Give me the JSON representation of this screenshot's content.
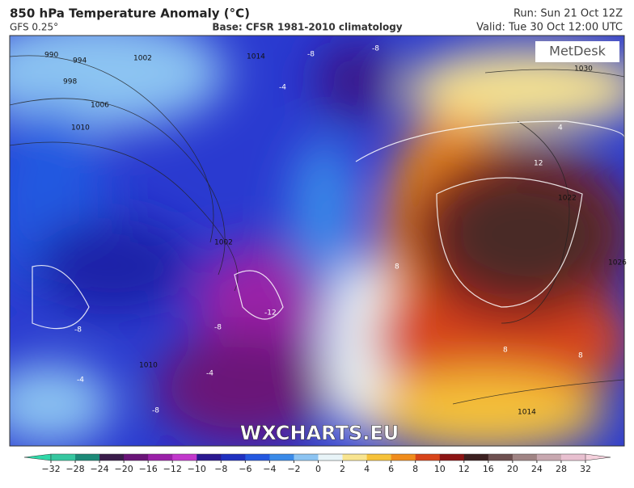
{
  "header": {
    "title": "850 hPa Temperature Anomaly (°C)",
    "model": "GFS 0.25°",
    "base": "Base: CFSR 1981-2010 climatology",
    "run": "Run: Sun 21 Oct 12Z",
    "valid": "Valid: Tue 30 Oct 12:00 UTC"
  },
  "map": {
    "logo": "MetDesk",
    "watermark": "WXCHARTS.EU",
    "isobar_labels": [
      "990",
      "994",
      "998",
      "1002",
      "1006",
      "1010",
      "1014",
      "1014",
      "1022",
      "1026",
      "1030",
      "1010",
      "1002"
    ],
    "anomaly_labels": [
      "-8",
      "-8",
      "-4",
      "4",
      "12",
      "8",
      "-8",
      "-12",
      "-8",
      "-4",
      "8",
      "-8",
      "8",
      "-4"
    ]
  },
  "colorbar": {
    "below": "#2fd8a8",
    "above": "#f4d0dc",
    "colors": [
      "#36c7a0",
      "#1c8a78",
      "#3a1c4a",
      "#6a1478",
      "#9a20a8",
      "#c238cc",
      "#2a1890",
      "#1f30c0",
      "#2458e0",
      "#3a8ae8",
      "#8cc4f2",
      "#e8f4f8",
      "#f8e490",
      "#f6c23a",
      "#f08c1c",
      "#d8441a",
      "#8c1414",
      "#3c2020",
      "#6e5050",
      "#a08484",
      "#c8a8b0",
      "#e8c0d0"
    ],
    "ticks": [
      {
        "value": -32,
        "label": "−32"
      },
      {
        "value": -28,
        "label": "−28"
      },
      {
        "value": -24,
        "label": "−24"
      },
      {
        "value": -20,
        "label": "−20"
      },
      {
        "value": -16,
        "label": "−16"
      },
      {
        "value": -12,
        "label": "−12"
      },
      {
        "value": -10,
        "label": "−10"
      },
      {
        "value": -8,
        "label": "−8"
      },
      {
        "value": -6,
        "label": "−6"
      },
      {
        "value": -4,
        "label": "−4"
      },
      {
        "value": -2,
        "label": "−2"
      },
      0,
      2,
      4,
      6,
      8,
      10,
      12,
      16,
      20,
      24,
      28,
      32
    ]
  }
}
